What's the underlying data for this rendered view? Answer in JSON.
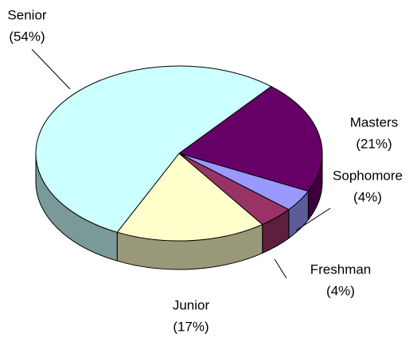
{
  "chart_data": {
    "type": "pie",
    "categories": [
      "Masters",
      "Sophomore",
      "Freshman",
      "Junior",
      "Senior"
    ],
    "values": [
      21,
      4,
      4,
      17,
      54
    ],
    "value_labels": [
      "(21%)",
      "(4%)",
      "(4%)",
      "(17%)",
      "(54%)"
    ],
    "colors": [
      "#660066",
      "#9999ff",
      "#993366",
      "#ffffcc",
      "#ccffff"
    ]
  }
}
